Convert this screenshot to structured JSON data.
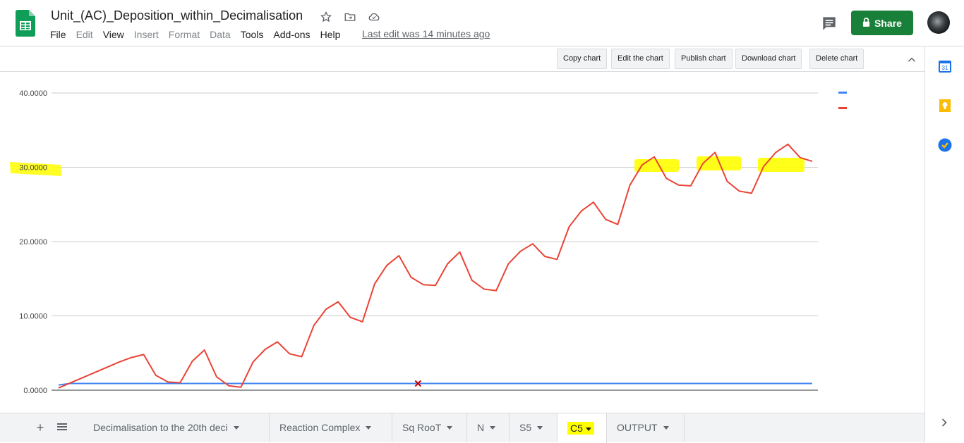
{
  "doc": {
    "title": "Unit_(AC)_Deposition_within_Decimalisation",
    "last_edit": "Last edit was 14 minutes ago"
  },
  "menu": [
    "File",
    "Edit",
    "View",
    "Insert",
    "Format",
    "Data",
    "Tools",
    "Add-ons",
    "Help"
  ],
  "menu_disabled": [
    "Edit",
    "Insert",
    "Format",
    "Data"
  ],
  "header": {
    "share_label": "Share"
  },
  "chart_toolbar": {
    "copy": "Copy chart",
    "edit": "Edit the chart",
    "publish": "Publish chart",
    "download": "Download chart",
    "delete": "Delete chart"
  },
  "sheets": {
    "tabs": [
      "Decimalisation to the 20th deci",
      "Reaction Complex",
      "Sq RooT",
      "N",
      "S5",
      "C5",
      "OUTPUT"
    ],
    "active": "C5"
  },
  "colors": {
    "accent_green": "#188038",
    "series_blue": "#4285f4",
    "series_red": "#ea4335",
    "highlight": "#ffff00"
  },
  "icons": [
    "sheets-logo",
    "star-icon",
    "move-folder-icon",
    "cloud-status-icon",
    "comment-icon",
    "lock-icon",
    "calendar-icon",
    "keep-icon",
    "tasks-icon",
    "chevron-up-icon",
    "chevron-right-icon",
    "add-sheet-icon",
    "sheet-list-icon"
  ],
  "chart_data": {
    "type": "line",
    "ylim": [
      0,
      40
    ],
    "yticks": [
      "0.0000",
      "10.0000",
      "20.0000",
      "30.0000",
      "40.0000"
    ],
    "grid": true,
    "legend_position": "top-right",
    "series": [
      {
        "color": "#4285f4",
        "values": [
          0.7,
          0.9,
          0.9,
          0.9,
          0.9,
          0.9,
          0.9,
          0.9,
          0.9,
          0.9,
          0.9,
          0.9,
          0.9,
          0.9,
          0.9,
          0.9,
          0.9,
          0.9,
          0.9,
          0.9,
          0.9,
          0.9,
          0.9,
          0.9,
          0.9,
          0.9,
          0.9,
          0.9,
          0.9,
          0.9,
          0.9,
          0.9,
          0.9,
          0.9,
          0.9,
          0.9,
          0.9,
          0.9,
          0.9,
          0.9,
          0.9,
          0.9,
          0.9,
          0.9,
          0.9,
          0.9,
          0.9,
          0.9,
          0.9,
          0.9,
          0.9,
          0.9,
          0.9,
          0.9,
          0.9,
          0.9,
          0.9,
          0.9,
          0.9,
          0.9,
          0.9,
          0.9,
          0.9,
          0.9,
          0.9,
          0.9
        ]
      },
      {
        "color": "#ea4335",
        "values": [
          0.3,
          1.0,
          1.7,
          2.4,
          3.1,
          3.8,
          4.4,
          4.8,
          2.0,
          1.1,
          1.0,
          3.9,
          5.4,
          1.8,
          0.6,
          0.4,
          3.8,
          5.5,
          6.5,
          4.9,
          4.5,
          8.7,
          10.9,
          11.9,
          9.8,
          9.2,
          14.3,
          16.8,
          18.1,
          15.2,
          14.2,
          14.1,
          17.0,
          18.6,
          14.8,
          13.6,
          13.4,
          17.0,
          18.7,
          19.7,
          18.0,
          17.6,
          22.0,
          24.1,
          25.3,
          23.0,
          22.3,
          27.6,
          30.3,
          31.4,
          28.5,
          27.6,
          27.5,
          30.5,
          32.0,
          28.1,
          26.8,
          26.5,
          30.1,
          32.0,
          33.1,
          31.3,
          30.8
        ]
      }
    ],
    "marker": {
      "series": 0,
      "index": 31,
      "value": 0.9,
      "symbol": "x"
    }
  }
}
